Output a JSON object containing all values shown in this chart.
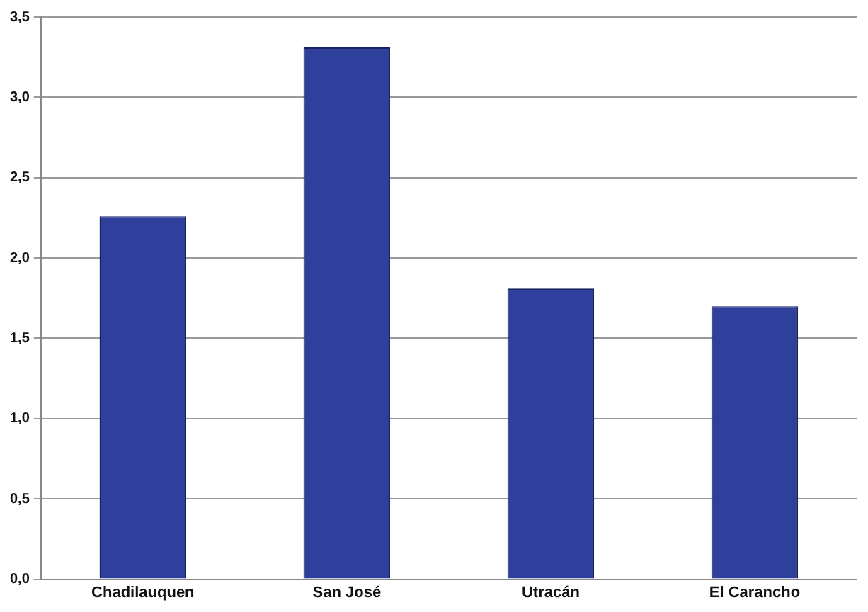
{
  "chart_data": {
    "type": "bar",
    "categories": [
      "Chadilauquen",
      "San José",
      "Utracán",
      "El Carancho"
    ],
    "values": [
      2.26,
      3.31,
      1.81,
      1.7
    ],
    "color": "#2f3f9c",
    "ylim": [
      0,
      3.5
    ],
    "yticks": [
      {
        "value": 0,
        "label": "0,0"
      },
      {
        "value": 0.5,
        "label": "0,5"
      },
      {
        "value": 1,
        "label": "1,0"
      },
      {
        "value": 1.5,
        "label": "1,5"
      },
      {
        "value": 2,
        "label": "2,0"
      },
      {
        "value": 2.5,
        "label": "2,5"
      },
      {
        "value": 3,
        "label": "3,0"
      },
      {
        "value": 3.5,
        "label": "3,5"
      }
    ],
    "grid": "y",
    "legend": false
  }
}
